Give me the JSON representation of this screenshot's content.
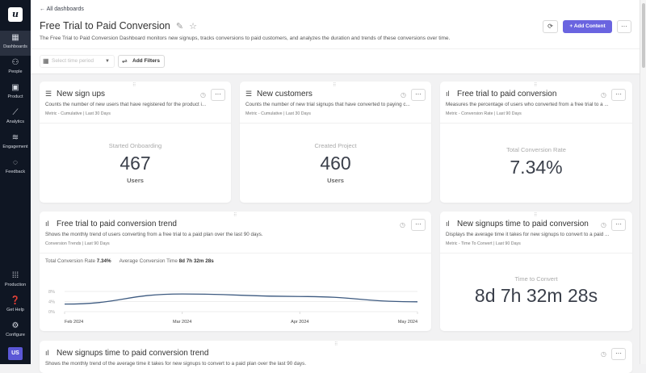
{
  "sidebar": {
    "logo": "u",
    "items": [
      {
        "label": "Dashboards",
        "icon": "grid-icon"
      },
      {
        "label": "People",
        "icon": "people-icon"
      },
      {
        "label": "Product",
        "icon": "product-icon"
      },
      {
        "label": "Analytics",
        "icon": "chart-icon"
      },
      {
        "label": "Engagement",
        "icon": "layers-icon"
      },
      {
        "label": "Feedback",
        "icon": "chat-icon"
      }
    ],
    "bottom": [
      {
        "label": "Production",
        "icon": "apps-icon"
      },
      {
        "label": "Get Help",
        "icon": "help-icon"
      },
      {
        "label": "Configure",
        "icon": "gear-icon"
      }
    ],
    "avatar": "US"
  },
  "header": {
    "back": "All dashboards",
    "title": "Free Trial to Paid Conversion",
    "description": "The Free Trial to Paid Conversion Dashboard monitors new signups, tracks conversions to paid customers, and analyzes the duration and trends of these conversions over time.",
    "add_content": "Add Content",
    "time_placeholder": "Select time period",
    "add_filters": "Add Filters",
    "accent": "#6a64e0"
  },
  "cards": [
    {
      "title": "New sign ups",
      "desc": "Counts the number of new users that have registered for the product i...",
      "meta": "Metric - Cumulative | Last 30 Days",
      "label": "Started Onboarding",
      "value": "467",
      "unit": "Users"
    },
    {
      "title": "New customers",
      "desc": "Counts the number of new trial signups that have converted to paying c...",
      "meta": "Metric - Cumulative | Last 30 Days",
      "label": "Created Project",
      "value": "460",
      "unit": "Users"
    },
    {
      "title": "Free trial to paid conversion",
      "desc": "Measures the percentage of users who converted from a free trial to a ...",
      "meta": "Metric - Conversion Rate | Last 90 Days",
      "label": "Total Conversion Rate",
      "value": "7.34%"
    },
    {
      "title": "Free trial to paid conversion trend",
      "desc": "Shows the monthly trend of users converting from a free trial to a paid plan over the last 90 days.",
      "meta": "Conversion Trends | Last 90 Days",
      "kpi1_label": "Total Conversion Rate",
      "kpi1_value": "7.34%",
      "kpi2_label": "Average Conversion Time",
      "kpi2_value": "8d 7h 32m 28s"
    },
    {
      "title": "New signups time to paid conversion",
      "desc": "Displays the average time it takes for new signups to convert to a paid ...",
      "meta": "Metric - Time To Convert | Last 90 Days",
      "label": "Time to Convert",
      "value": "8d 7h 32m 28s"
    },
    {
      "title": "New signups time to paid conversion trend",
      "desc": "Shows the monthly trend of the average time it takes for new signups to convert to a paid plan over the last 90 days."
    }
  ],
  "chart_data": {
    "type": "line",
    "x": [
      "Feb 2024",
      "Mar 2024",
      "Apr 2024",
      "May 2024"
    ],
    "y": [
      3.0,
      7.0,
      6.0,
      3.9
    ],
    "yticks": [
      "0%",
      "4%",
      "8%"
    ],
    "ylim": [
      0,
      8
    ],
    "grid": true,
    "color": "#3d5a80"
  }
}
